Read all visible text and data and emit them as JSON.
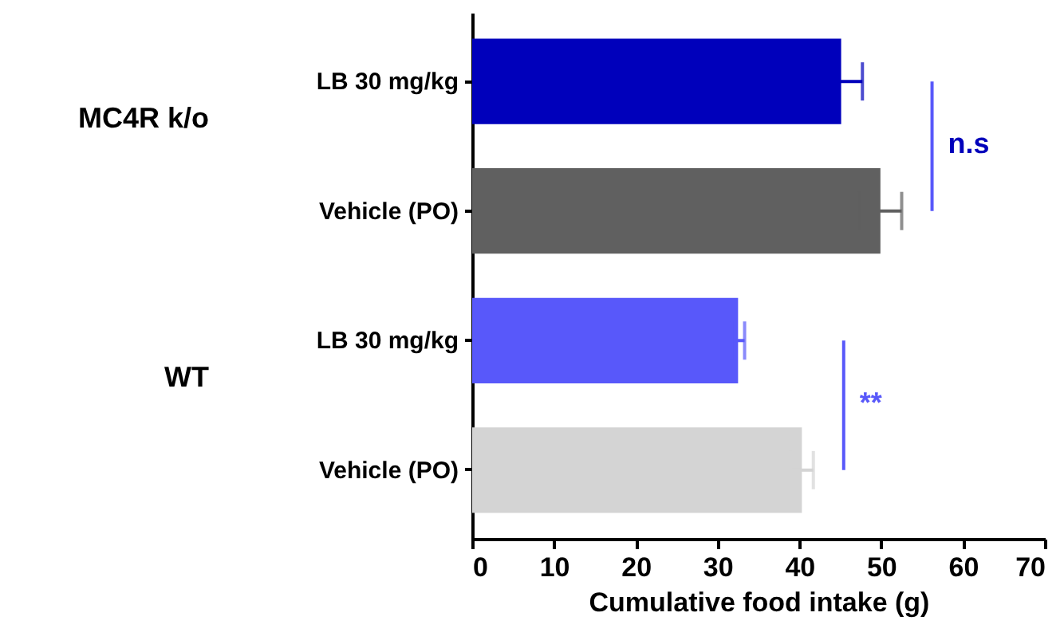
{
  "chart_data": {
    "type": "bar",
    "orientation": "horizontal",
    "categories": [
      "LB 30 mg/kg",
      "Vehicle (PO)",
      "LB 30 mg/kg",
      "Vehicle (PO)"
    ],
    "values": [
      45.1,
      49.9,
      32.5,
      40.3
    ],
    "errors": [
      2.6,
      2.6,
      0.8,
      1.4
    ],
    "colors": [
      "#0000bb",
      "#606060",
      "#5858fa",
      "#d4d4d4"
    ],
    "xlabel": "Cumulative food intake (g)",
    "xlim": [
      0,
      70
    ],
    "xticks": [
      0,
      10,
      20,
      30,
      40,
      50,
      60,
      70
    ],
    "annotations": [
      "MC4R k/o",
      "WT",
      "n.s",
      "**"
    ]
  }
}
